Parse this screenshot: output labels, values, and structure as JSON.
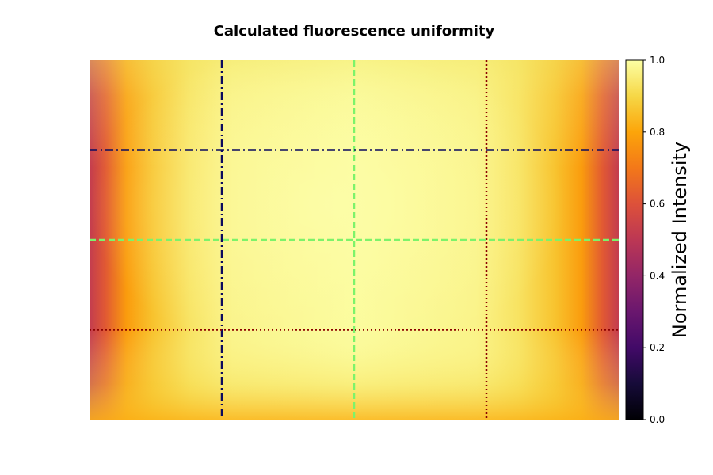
{
  "chart_data": {
    "type": "heatmap",
    "title": "Calculated fluorescence uniformity",
    "colormap": "inferno",
    "colorbar": {
      "label": "Normalized Intensity",
      "range": [
        0.0,
        1.0
      ],
      "ticks": [
        "0.0",
        "0.2",
        "0.4",
        "0.6",
        "0.8",
        "1.0"
      ]
    },
    "vertical_lines": [
      {
        "x": 0.25,
        "color": "#0b0a5e",
        "style": "dashdot"
      },
      {
        "x": 0.5,
        "color": "#7cf36a",
        "style": "dashed"
      },
      {
        "x": 0.75,
        "color": "#8b0000",
        "style": "dotted"
      }
    ],
    "horizontal_lines": [
      {
        "y": 0.75,
        "color": "#0b0a5e",
        "style": "dashdot"
      },
      {
        "y": 0.5,
        "color": "#7cf36a",
        "style": "dashed"
      },
      {
        "y": 0.25,
        "color": "#8b0000",
        "style": "dotted"
      }
    ],
    "grid": false,
    "axes_visible": false
  }
}
